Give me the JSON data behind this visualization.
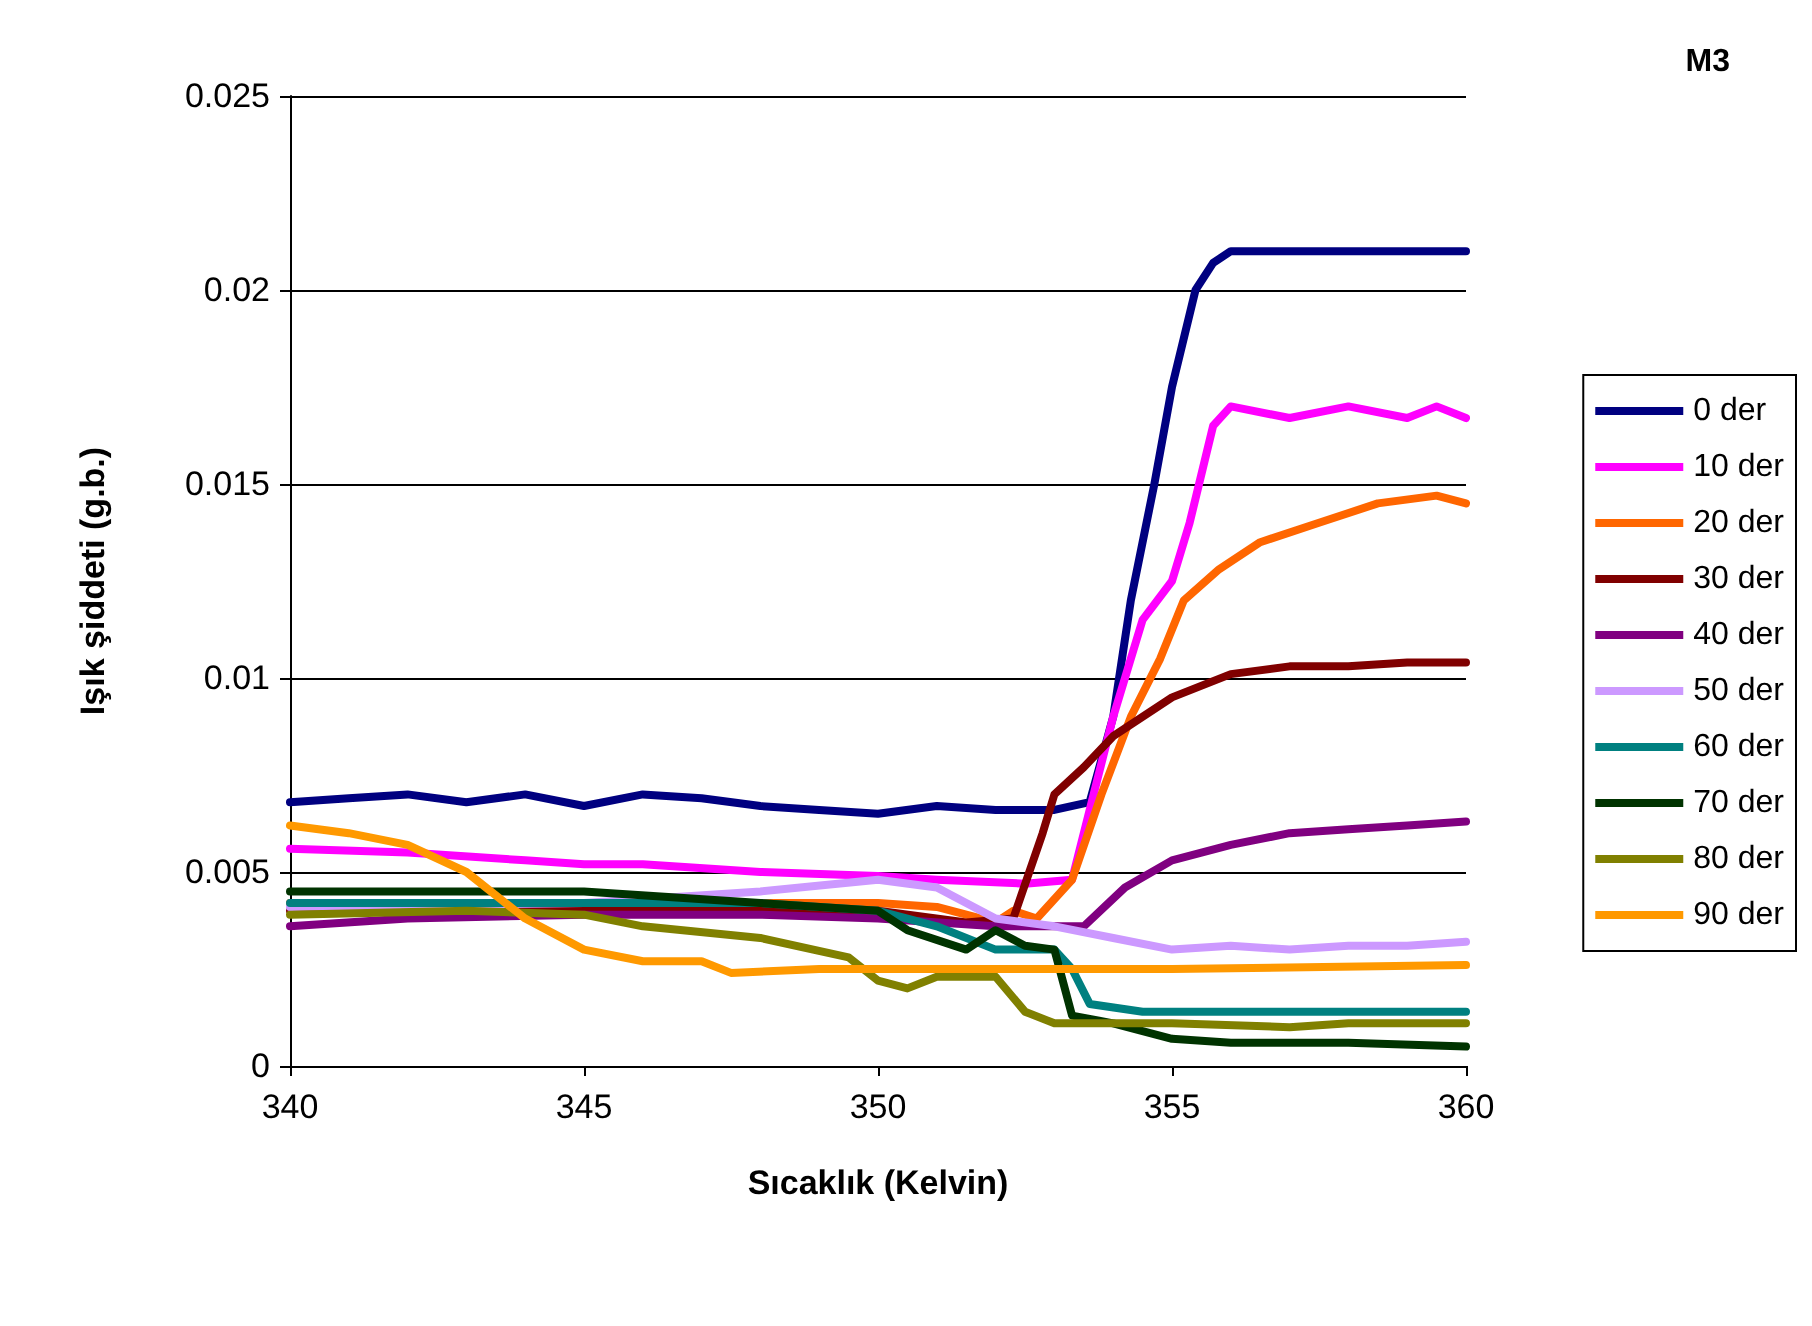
{
  "chart_data": {
    "type": "line",
    "title": "M3",
    "xlabel": "Sıcaklık (Kelvin)",
    "ylabel": "Işık şiddeti (g.b.)",
    "xlim": [
      340,
      360
    ],
    "xticks": [
      340,
      345,
      350,
      355,
      360
    ],
    "ylim": [
      0,
      0.025
    ],
    "yticks": [
      0,
      0.005,
      0.01,
      0.015,
      0.02,
      0.025
    ],
    "grid": "y",
    "legend": "right",
    "marker": "none",
    "line_style": "solid",
    "series": [
      {
        "name": "0 der",
        "color": "#000080",
        "x": [
          340,
          341,
          342,
          343,
          344,
          345,
          346,
          347,
          348,
          349,
          350,
          351,
          352,
          353,
          353.6,
          354,
          354.3,
          354.7,
          355,
          355.4,
          355.7,
          356,
          357,
          358,
          359,
          360
        ],
        "values": [
          0.0068,
          0.0069,
          0.007,
          0.0068,
          0.007,
          0.0067,
          0.007,
          0.0069,
          0.0067,
          0.0066,
          0.0065,
          0.0067,
          0.0066,
          0.0066,
          0.0068,
          0.009,
          0.012,
          0.015,
          0.0175,
          0.02,
          0.0207,
          0.021,
          0.021,
          0.021,
          0.021,
          0.021
        ]
      },
      {
        "name": "10 der",
        "color": "#ff00ff",
        "x": [
          340,
          342,
          344,
          345,
          346,
          348,
          350,
          351,
          352.5,
          353.3,
          354,
          354.5,
          355,
          355.3,
          355.7,
          356,
          357,
          358,
          359,
          359.5,
          360
        ],
        "values": [
          0.0056,
          0.0055,
          0.0053,
          0.0052,
          0.0052,
          0.005,
          0.0049,
          0.0048,
          0.0047,
          0.0048,
          0.009,
          0.0115,
          0.0125,
          0.014,
          0.0165,
          0.017,
          0.0167,
          0.017,
          0.0167,
          0.017,
          0.0167
        ]
      },
      {
        "name": "20 der",
        "color": "#ff6600",
        "x": [
          340,
          345,
          350,
          351,
          352,
          352.3,
          352.7,
          353.3,
          353.8,
          354.3,
          354.8,
          355.2,
          355.8,
          356.5,
          357.5,
          358.5,
          359.5,
          360
        ],
        "values": [
          0.0042,
          0.0042,
          0.0042,
          0.0041,
          0.0037,
          0.004,
          0.0038,
          0.0048,
          0.007,
          0.009,
          0.0105,
          0.012,
          0.0128,
          0.0135,
          0.014,
          0.0145,
          0.0147,
          0.0145
        ]
      },
      {
        "name": "30 der",
        "color": "#800000",
        "x": [
          340,
          345,
          350,
          351.5,
          352.3,
          352.8,
          353,
          353.5,
          354,
          355,
          356,
          357,
          358,
          359,
          360
        ],
        "values": [
          0.004,
          0.004,
          0.004,
          0.0037,
          0.0038,
          0.006,
          0.007,
          0.0077,
          0.0085,
          0.0095,
          0.0101,
          0.0103,
          0.0103,
          0.0104,
          0.0104
        ]
      },
      {
        "name": "40 der",
        "color": "#800080",
        "x": [
          340,
          342,
          345,
          348,
          350,
          352,
          353.5,
          354.2,
          355,
          356,
          357,
          358,
          359,
          360
        ],
        "values": [
          0.0036,
          0.0038,
          0.0039,
          0.0039,
          0.0038,
          0.0036,
          0.0036,
          0.0046,
          0.0053,
          0.0057,
          0.006,
          0.0061,
          0.0062,
          0.0063
        ]
      },
      {
        "name": "50 der",
        "color": "#cc99ff",
        "x": [
          340,
          345,
          348,
          350,
          351,
          352,
          353,
          354,
          355,
          356,
          357,
          358,
          359,
          360
        ],
        "values": [
          0.0041,
          0.0042,
          0.0045,
          0.0048,
          0.0046,
          0.0038,
          0.0036,
          0.0033,
          0.003,
          0.0031,
          0.003,
          0.0031,
          0.0031,
          0.0032
        ]
      },
      {
        "name": "60 der",
        "color": "#008080",
        "x": [
          340,
          345,
          348,
          350,
          351,
          352,
          353,
          353.3,
          353.6,
          354.5,
          356,
          358,
          360
        ],
        "values": [
          0.0042,
          0.0042,
          0.0042,
          0.004,
          0.0036,
          0.003,
          0.003,
          0.0025,
          0.0016,
          0.0014,
          0.0014,
          0.0014,
          0.0014
        ]
      },
      {
        "name": "70 der",
        "color": "#003300",
        "x": [
          340,
          342,
          345,
          348,
          350,
          350.5,
          351.5,
          352,
          352.5,
          353,
          353.3,
          354,
          355,
          356,
          358,
          360
        ],
        "values": [
          0.0045,
          0.0045,
          0.0045,
          0.0042,
          0.004,
          0.0035,
          0.003,
          0.0035,
          0.0031,
          0.003,
          0.0013,
          0.0011,
          0.0007,
          0.0006,
          0.0006,
          0.0005
        ]
      },
      {
        "name": "80 der",
        "color": "#808000",
        "x": [
          340,
          343,
          345,
          346,
          348,
          349.5,
          350,
          350.5,
          351,
          352,
          352.5,
          353,
          355,
          357,
          358,
          360
        ],
        "values": [
          0.0039,
          0.004,
          0.0039,
          0.0036,
          0.0033,
          0.0028,
          0.0022,
          0.002,
          0.0023,
          0.0023,
          0.0014,
          0.0011,
          0.0011,
          0.001,
          0.0011,
          0.0011
        ]
      },
      {
        "name": "90 der",
        "color": "#ff9900",
        "x": [
          340,
          341,
          342,
          343,
          344,
          345,
          346,
          347,
          347.5,
          349,
          352,
          355,
          360
        ],
        "values": [
          0.0062,
          0.006,
          0.0057,
          0.005,
          0.0038,
          0.003,
          0.0027,
          0.0027,
          0.0024,
          0.0025,
          0.0025,
          0.0025,
          0.0026
        ]
      }
    ]
  }
}
